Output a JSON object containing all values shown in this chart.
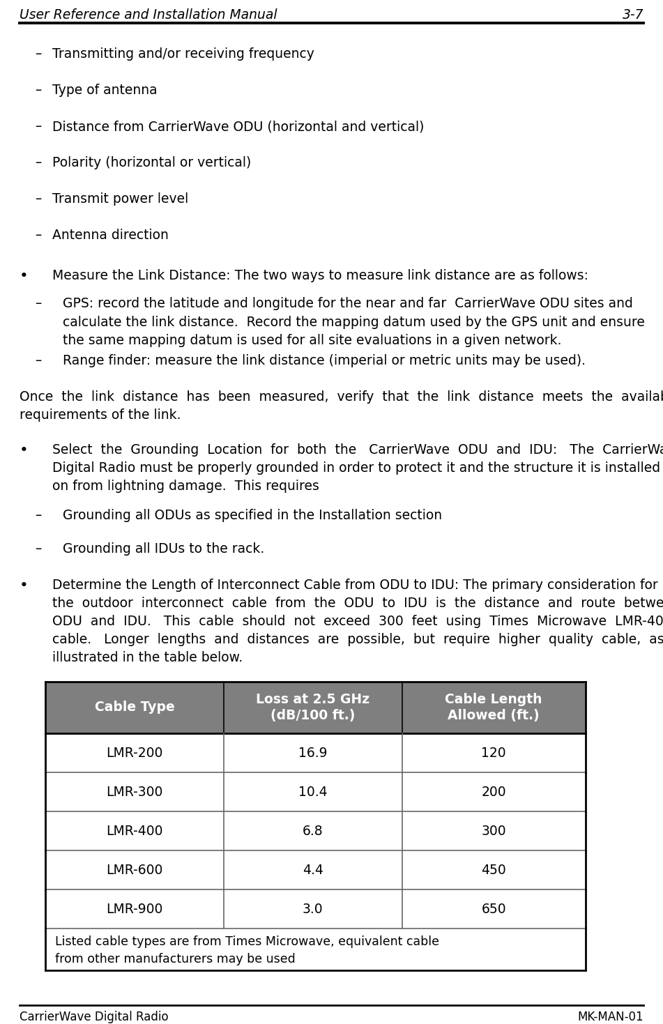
{
  "header_left": "User Reference and Installation Manual",
  "header_right": "3-7",
  "footer_left": "CarrierWave Digital Radio",
  "footer_right": "MK-MAN-01",
  "background_color": "#ffffff",
  "sub_bullets": [
    "Transmitting and/or receiving frequency",
    "Type of antenna",
    "Distance from CarrierWave ODU (horizontal and vertical)",
    "Polarity (horizontal or vertical)",
    "Transmit power level",
    "Antenna direction"
  ],
  "table": {
    "header_bg": "#7f7f7f",
    "header_text_color": "#ffffff",
    "col_headers": [
      "Cable Type",
      "Loss at 2.5 GHz\n(dB/100 ft.)",
      "Cable Length\nAllowed (ft.)"
    ],
    "rows": [
      [
        "LMR-200",
        "16.9",
        "120"
      ],
      [
        "LMR-300",
        "10.4",
        "200"
      ],
      [
        "LMR-400",
        "6.8",
        "300"
      ],
      [
        "LMR-600",
        "4.4",
        "450"
      ],
      [
        "LMR-900",
        "3.0",
        "650"
      ]
    ],
    "footer_text": "Listed cable types are from Times Microwave, equivalent cable\nfrom other manufacturers may be used"
  }
}
